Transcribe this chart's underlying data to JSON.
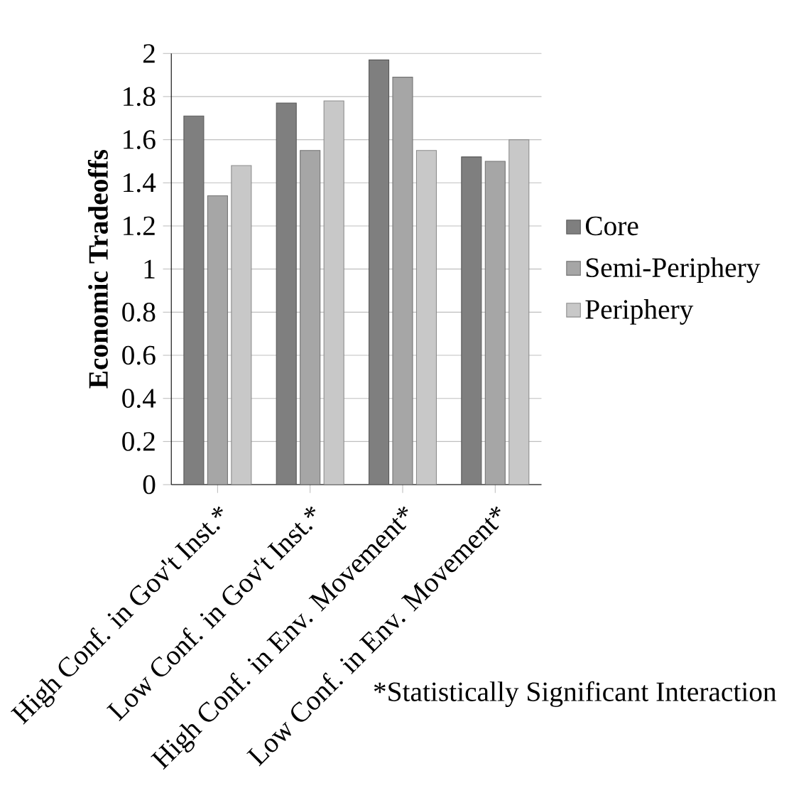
{
  "chart_data": {
    "type": "bar",
    "ylabel": "Economic Tradeoffs",
    "categories": [
      "High Conf. in Gov't Inst.*",
      "Low Conf. in Gov't Inst.*",
      "High Conf. in Env. Movement*",
      "Low Conf. in Env. Movement*"
    ],
    "series": [
      {
        "name": "Core",
        "color": "#7f7f7f",
        "values": [
          1.71,
          1.77,
          1.97,
          1.52
        ]
      },
      {
        "name": "Semi-Periphery",
        "color": "#a6a6a6",
        "values": [
          1.34,
          1.55,
          1.89,
          1.5
        ]
      },
      {
        "name": "Periphery",
        "color": "#c8c8c8",
        "values": [
          1.48,
          1.78,
          1.55,
          1.6
        ]
      }
    ],
    "ylim": [
      0,
      2
    ],
    "yticks": [
      0,
      0.2,
      0.4,
      0.6,
      0.8,
      1,
      1.2,
      1.4,
      1.6,
      1.8,
      2
    ],
    "grid": "y",
    "legend": "right",
    "annotations": [
      "*Statistically Significant Interaction"
    ]
  }
}
